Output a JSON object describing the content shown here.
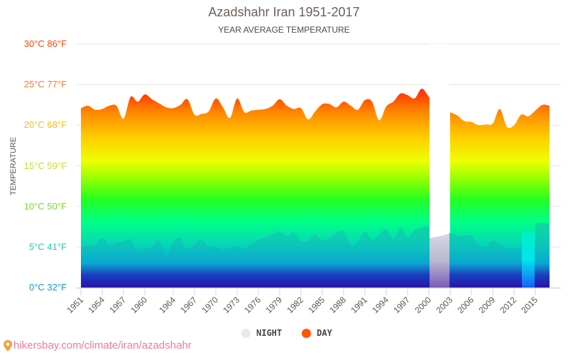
{
  "header": {
    "title": "Azadshahr Iran 1951-2017",
    "subtitle": "YEAR AVERAGE TEMPERATURE"
  },
  "y_axis": {
    "title": "TEMPERATURE",
    "ticks": [
      {
        "label": "30°C 86°F",
        "value": 30,
        "color": "#ff4400"
      },
      {
        "label": "25°C 77°F",
        "value": 25,
        "color": "#ff7722"
      },
      {
        "label": "20°C 68°F",
        "value": 20,
        "color": "#ffbb11"
      },
      {
        "label": "15°C 59°F",
        "value": 15,
        "color": "#ccdd22"
      },
      {
        "label": "10°C 50°F",
        "value": 10,
        "color": "#77dd22"
      },
      {
        "label": "5°C 41°F",
        "value": 5,
        "color": "#22ccaa"
      },
      {
        "label": "0°C 32°F",
        "value": 0,
        "color": "#1199cc"
      }
    ]
  },
  "legend": {
    "night_label": "NIGHT",
    "day_label": "DAY",
    "night_color": "#e8e8f0",
    "day_color": "#ff5500"
  },
  "source": {
    "text": "hikersbay.com/climate/iran/azadshahr",
    "icon": "map-pin-icon"
  },
  "chart_data": {
    "type": "area",
    "title": "Azadshahr Iran 1951-2017",
    "subtitle": "YEAR AVERAGE TEMPERATURE",
    "xlabel": "",
    "ylabel": "TEMPERATURE",
    "ylim": [
      0,
      30
    ],
    "grid": true,
    "legend_position": "bottom",
    "x_tick_labels": [
      "1951",
      "1954",
      "1957",
      "1960",
      "1964",
      "1967",
      "1970",
      "1973",
      "1976",
      "1979",
      "1982",
      "1985",
      "1988",
      "1991",
      "1994",
      "1997",
      "2000",
      "2003",
      "2006",
      "2009",
      "2012",
      "2015"
    ],
    "x": [
      1951,
      1952,
      1953,
      1954,
      1955,
      1956,
      1957,
      1958,
      1959,
      1960,
      1961,
      1962,
      1963,
      1964,
      1965,
      1966,
      1967,
      1968,
      1969,
      1970,
      1971,
      1972,
      1973,
      1974,
      1975,
      1976,
      1977,
      1978,
      1979,
      1980,
      1981,
      1982,
      1983,
      1984,
      1985,
      1986,
      1987,
      1988,
      1989,
      1990,
      1991,
      1992,
      1993,
      1994,
      1995,
      1996,
      1997,
      1998,
      1999,
      2000,
      2001,
      2002,
      2003,
      2004,
      2005,
      2006,
      2007,
      2008,
      2009,
      2010,
      2011,
      2012,
      2013,
      2014,
      2015,
      2016,
      2017
    ],
    "series": [
      {
        "name": "DAY",
        "values": [
          22.1,
          22.4,
          21.9,
          22.0,
          22.4,
          22.4,
          20.8,
          23.5,
          22.9,
          23.8,
          23.2,
          22.7,
          22.2,
          22.1,
          22.5,
          23.2,
          21.3,
          21.4,
          21.7,
          23.3,
          22.2,
          20.9,
          23.3,
          21.6,
          21.8,
          21.9,
          22.0,
          22.4,
          23.2,
          22.4,
          22.0,
          22.1,
          20.7,
          21.7,
          22.6,
          22.6,
          22.2,
          22.9,
          22.4,
          21.9,
          23.1,
          22.9,
          20.6,
          22.3,
          22.9,
          23.9,
          23.7,
          23.3,
          24.5,
          23.5,
          22.4,
          null,
          21.6,
          21.2,
          20.5,
          20.4,
          20.0,
          20.1,
          20.2,
          22.0,
          19.8,
          20.0,
          21.3,
          21.1,
          21.8,
          22.5,
          22.4
        ]
      },
      {
        "name": "NIGHT",
        "values": [
          5.0,
          5.2,
          5.2,
          6.1,
          5.3,
          5.5,
          5.7,
          5.9,
          4.2,
          4.8,
          5.0,
          5.8,
          3.8,
          5.6,
          6.1,
          4.6,
          5.3,
          5.9,
          5.0,
          5.1,
          4.6,
          4.9,
          5.0,
          4.8,
          5.4,
          5.9,
          6.2,
          6.6,
          6.9,
          6.3,
          6.8,
          5.7,
          5.8,
          6.5,
          5.8,
          6.1,
          6.7,
          6.9,
          5.3,
          5.7,
          6.9,
          5.9,
          6.5,
          7.2,
          6.0,
          7.4,
          6.2,
          7.1,
          7.4,
          7.5,
          6.1,
          6.4,
          6.7,
          6.4,
          6.4,
          6.4,
          5.3,
          5.0,
          5.8,
          5.2,
          4.9,
          4.9,
          4.9,
          null,
          7.9,
          8.0,
          7.8
        ]
      }
    ],
    "notes": "Day value missing for 2002 (gap); night values for 2001-2002 shown greyed; night value missing for 2014 (cyan strip)."
  }
}
